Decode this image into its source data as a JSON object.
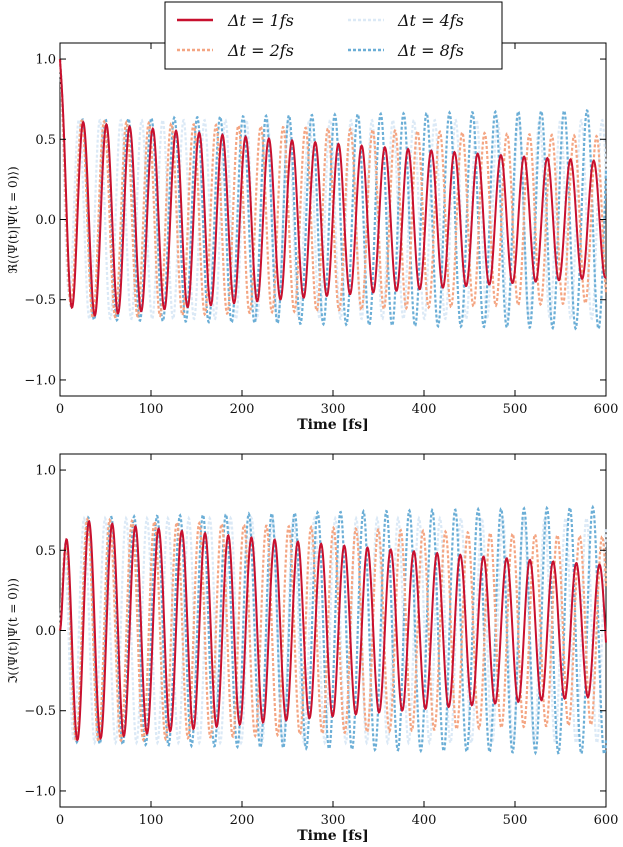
{
  "legend": {
    "entries": [
      {
        "label": "Δt = 1fs",
        "color": "#c8102e",
        "dash": "solid"
      },
      {
        "label": "Δt = 2fs",
        "color": "#f4a582",
        "dash": "dotted"
      },
      {
        "label": "Δt = 4fs",
        "color": "#dbe9f6",
        "dash": "dotted"
      },
      {
        "label": "Δt = 8fs",
        "color": "#6baed6",
        "dash": "dotted"
      }
    ]
  },
  "chart_data": [
    {
      "type": "line",
      "id": "real",
      "xlabel": "Time [fs]",
      "ylabel": "ℜ(⟨Ψ(t)|Ψ(t = 0)⟩)",
      "xlim": [
        0,
        600
      ],
      "ylim": [
        -1.1,
        1.1
      ],
      "xticks": [
        0,
        100,
        200,
        300,
        400,
        500,
        600
      ],
      "yticks": [
        -1.0,
        -0.5,
        0.0,
        0.5,
        1.0
      ],
      "ytick_labels": [
        "−1.0",
        "−0.5",
        "0.0",
        "0.5",
        "1.0"
      ],
      "series": [
        {
          "name": "Δt = 1fs",
          "model": {
            "start": 1.0,
            "amp0": 0.62,
            "decay": 0.0009,
            "period": 25.5,
            "phase": 0.0,
            "growth": 0.0
          }
        },
        {
          "name": "Δt = 2fs",
          "model": {
            "start": 1.0,
            "amp0": 0.62,
            "decay": 0.0003,
            "period": 24.6,
            "phase": 0.2,
            "growth": 0.0
          }
        },
        {
          "name": "Δt = 4fs",
          "model": {
            "start": 1.0,
            "amp0": 0.62,
            "decay": 0.0,
            "period": 23.0,
            "phase": 0.6,
            "growth": 0.0
          }
        },
        {
          "name": "Δt = 8fs",
          "model": {
            "start": 1.0,
            "amp0": 0.62,
            "decay": 0.0002,
            "period": 25.2,
            "phase": 0.1,
            "growth": 0.0004
          }
        }
      ]
    },
    {
      "type": "line",
      "id": "imag",
      "xlabel": "Time [fs]",
      "ylabel": "ℑ(⟨Ψ(t)|Ψ(t = 0)⟩)",
      "xlim": [
        0,
        600
      ],
      "ylim": [
        -1.1,
        1.1
      ],
      "xticks": [
        0,
        100,
        200,
        300,
        400,
        500,
        600
      ],
      "yticks": [
        -1.0,
        -0.5,
        0.0,
        0.5,
        1.0
      ],
      "ytick_labels": [
        "−1.0",
        "−0.5",
        "0.0",
        "0.5",
        "1.0"
      ],
      "series": [
        {
          "name": "Δt = 1fs",
          "model": {
            "start": 0.0,
            "amp0": 0.7,
            "decay": 0.0009,
            "period": 25.5,
            "phase": -1.5708,
            "growth": 0.0
          }
        },
        {
          "name": "Δt = 2fs",
          "model": {
            "start": 0.0,
            "amp0": 0.7,
            "decay": 0.0003,
            "period": 24.6,
            "phase": -1.37,
            "growth": 0.0
          }
        },
        {
          "name": "Δt = 4fs",
          "model": {
            "start": 0.0,
            "amp0": 0.7,
            "decay": 0.0,
            "period": 23.0,
            "phase": -0.97,
            "growth": 0.0
          }
        },
        {
          "name": "Δt = 8fs",
          "model": {
            "start": 0.0,
            "amp0": 0.7,
            "decay": 0.0002,
            "period": 25.2,
            "phase": -1.47,
            "growth": 0.0004
          }
        }
      ]
    }
  ]
}
